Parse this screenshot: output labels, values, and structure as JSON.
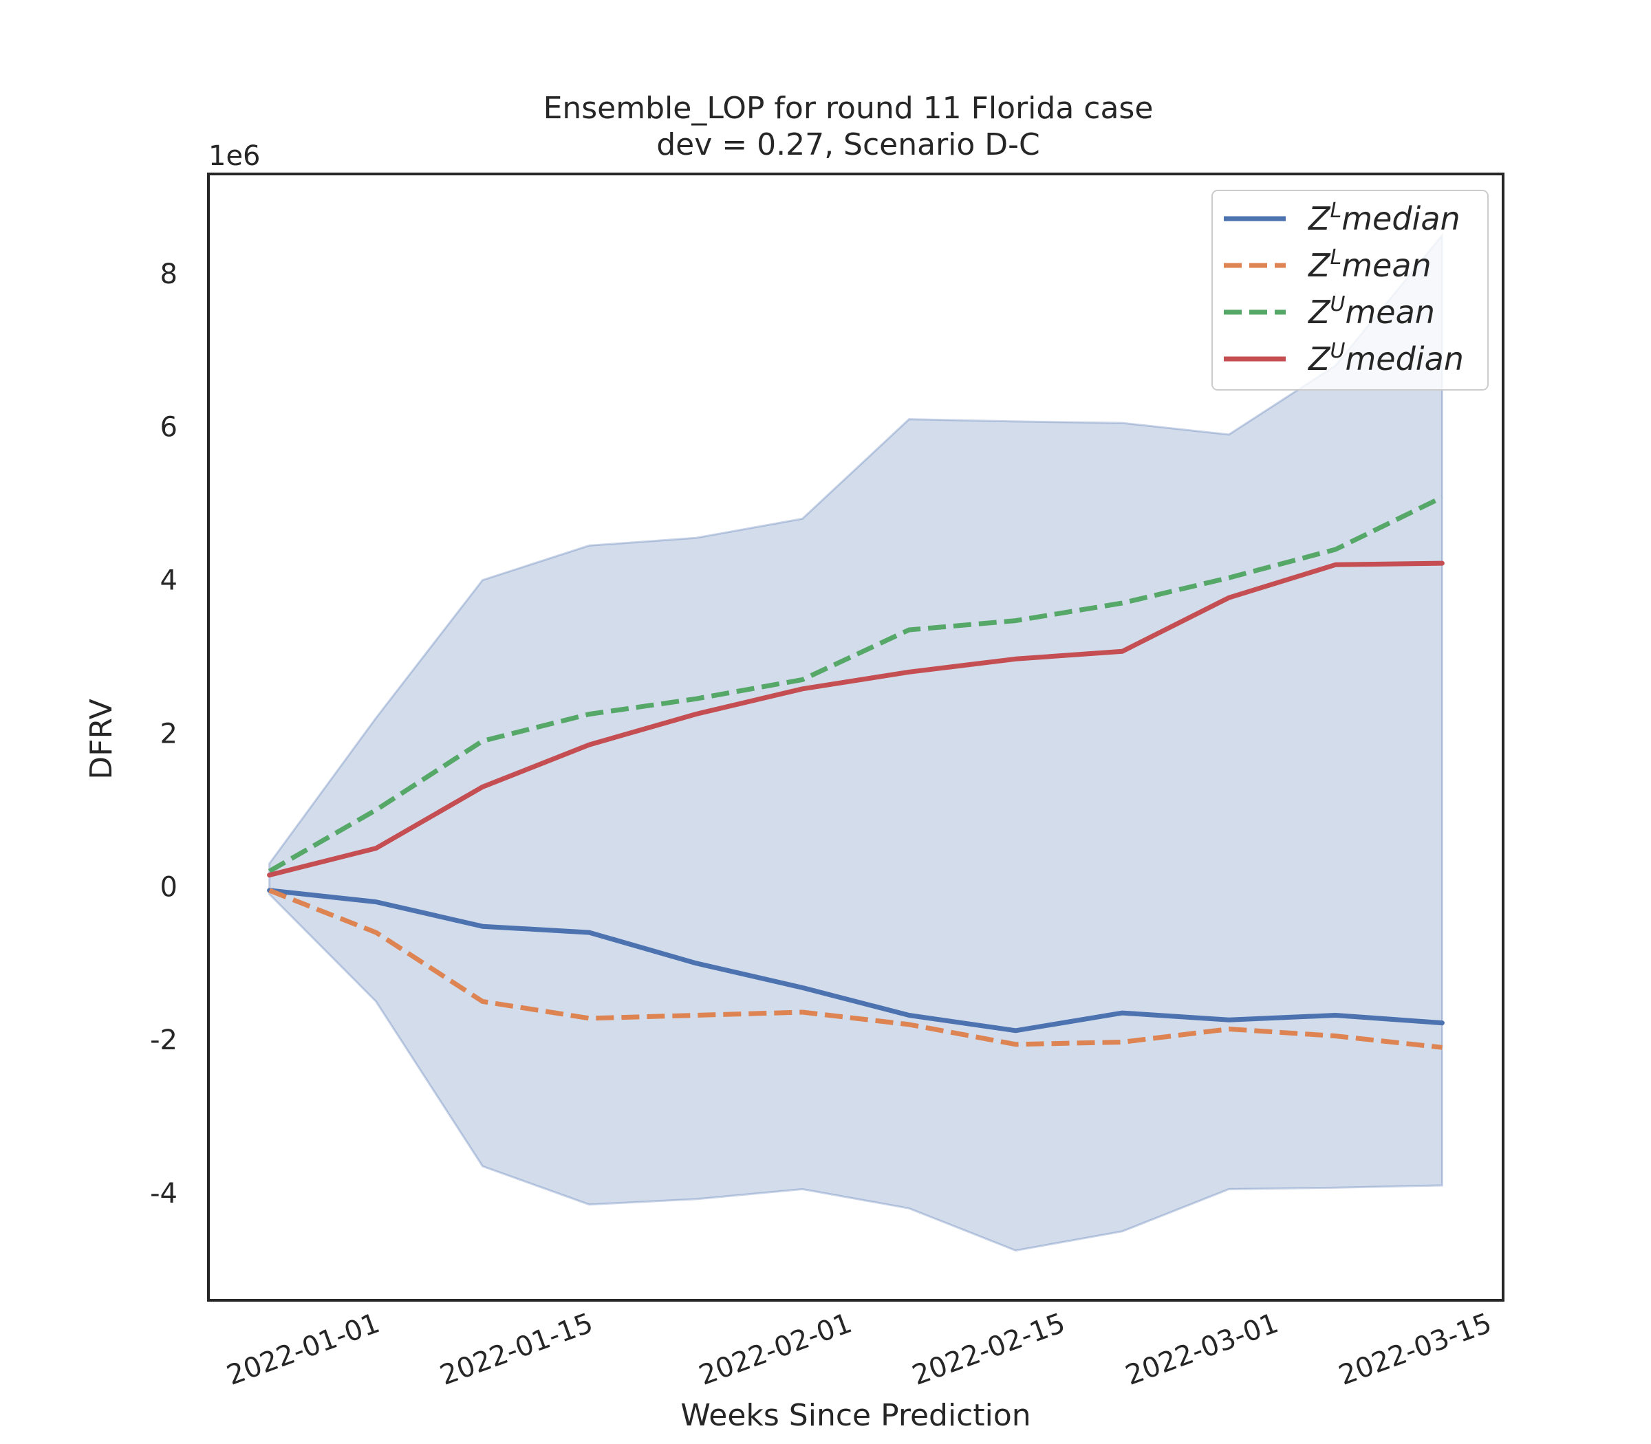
{
  "chart_data": {
    "type": "line",
    "title_line1": "Ensemble_LOP for round 11 Florida case",
    "title_line2": "dev = 0.27, Scenario D-C",
    "xlabel": "Weeks Since Prediction",
    "ylabel": "DFRV",
    "y_multiplier_label": "1e6",
    "x": [
      "2021-12-25",
      "2022-01-01",
      "2022-01-08",
      "2022-01-15",
      "2022-01-22",
      "2022-01-29",
      "2022-02-05",
      "2022-02-12",
      "2022-02-19",
      "2022-02-26",
      "2022-03-05",
      "2022-03-12"
    ],
    "x_ticks": [
      "2022-01-01",
      "2022-01-15",
      "2022-02-01",
      "2022-02-15",
      "2022-03-01",
      "2022-03-15"
    ],
    "xlim": [
      "2021-12-21",
      "2022-03-16"
    ],
    "y_ticks": [
      -4,
      -2,
      0,
      2,
      4,
      6,
      8
    ],
    "y_tick_labels": [
      "-4",
      "-2",
      "0",
      "2",
      "4",
      "6",
      "8"
    ],
    "ylim": [
      -5.4,
      9.3
    ],
    "band": {
      "upper": [
        0.3,
        2.2,
        4.0,
        4.45,
        4.55,
        4.8,
        6.1,
        6.07,
        6.05,
        5.9,
        6.8,
        8.5
      ],
      "lower": [
        -0.1,
        -1.5,
        -3.65,
        -4.15,
        -4.08,
        -3.95,
        -4.2,
        -4.75,
        -4.5,
        -3.95,
        -3.93,
        -3.9
      ],
      "color": "#4c72b0"
    },
    "series": [
      {
        "name": "median",
        "label_base": "Z",
        "label_sup": "L",
        "color": "#4c72b0",
        "dash": "solid",
        "values": [
          -0.05,
          -0.2,
          -0.52,
          -0.6,
          -1.0,
          -1.32,
          -1.68,
          -1.88,
          -1.65,
          -1.74,
          -1.68,
          -1.78
        ]
      },
      {
        "name": "mean",
        "label_base": "Z",
        "label_sup": "L",
        "color": "#dd8452",
        "dash": "dashed",
        "values": [
          -0.05,
          -0.6,
          -1.5,
          -1.72,
          -1.68,
          -1.64,
          -1.8,
          -2.06,
          -2.03,
          -1.86,
          -1.95,
          -2.1
        ]
      },
      {
        "name": "mean",
        "label_base": "Z",
        "label_sup": "U",
        "color": "#55a868",
        "dash": "dashed",
        "values": [
          0.2,
          1.0,
          1.9,
          2.25,
          2.45,
          2.7,
          3.35,
          3.47,
          3.7,
          4.03,
          4.4,
          5.08
        ]
      },
      {
        "name": "median",
        "label_base": "Z",
        "label_sup": "U",
        "color": "#c44e52",
        "dash": "solid",
        "values": [
          0.15,
          0.5,
          1.3,
          1.85,
          2.25,
          2.58,
          2.8,
          2.97,
          3.07,
          3.77,
          4.2,
          4.22
        ]
      }
    ],
    "legend_position": "top-right",
    "grid": false
  }
}
